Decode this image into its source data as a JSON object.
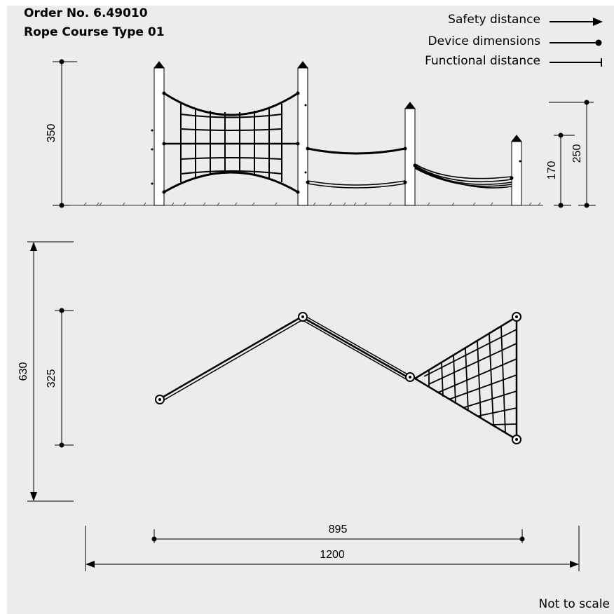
{
  "header": {
    "order_number": "Order No. 6.49010",
    "product_name": "Rope Course Type 01"
  },
  "legend": {
    "safety_distance": "Safety distance",
    "device_dimensions": "Device dimensions",
    "functional_distance": "Functional distance"
  },
  "dimensions": {
    "height_total": "350",
    "height_post_3": "250",
    "height_post_4": "170",
    "depth_total": "630",
    "depth_device": "325",
    "width_device": "895",
    "width_total": "1200"
  },
  "footer": {
    "scale_note": "Not to scale"
  }
}
